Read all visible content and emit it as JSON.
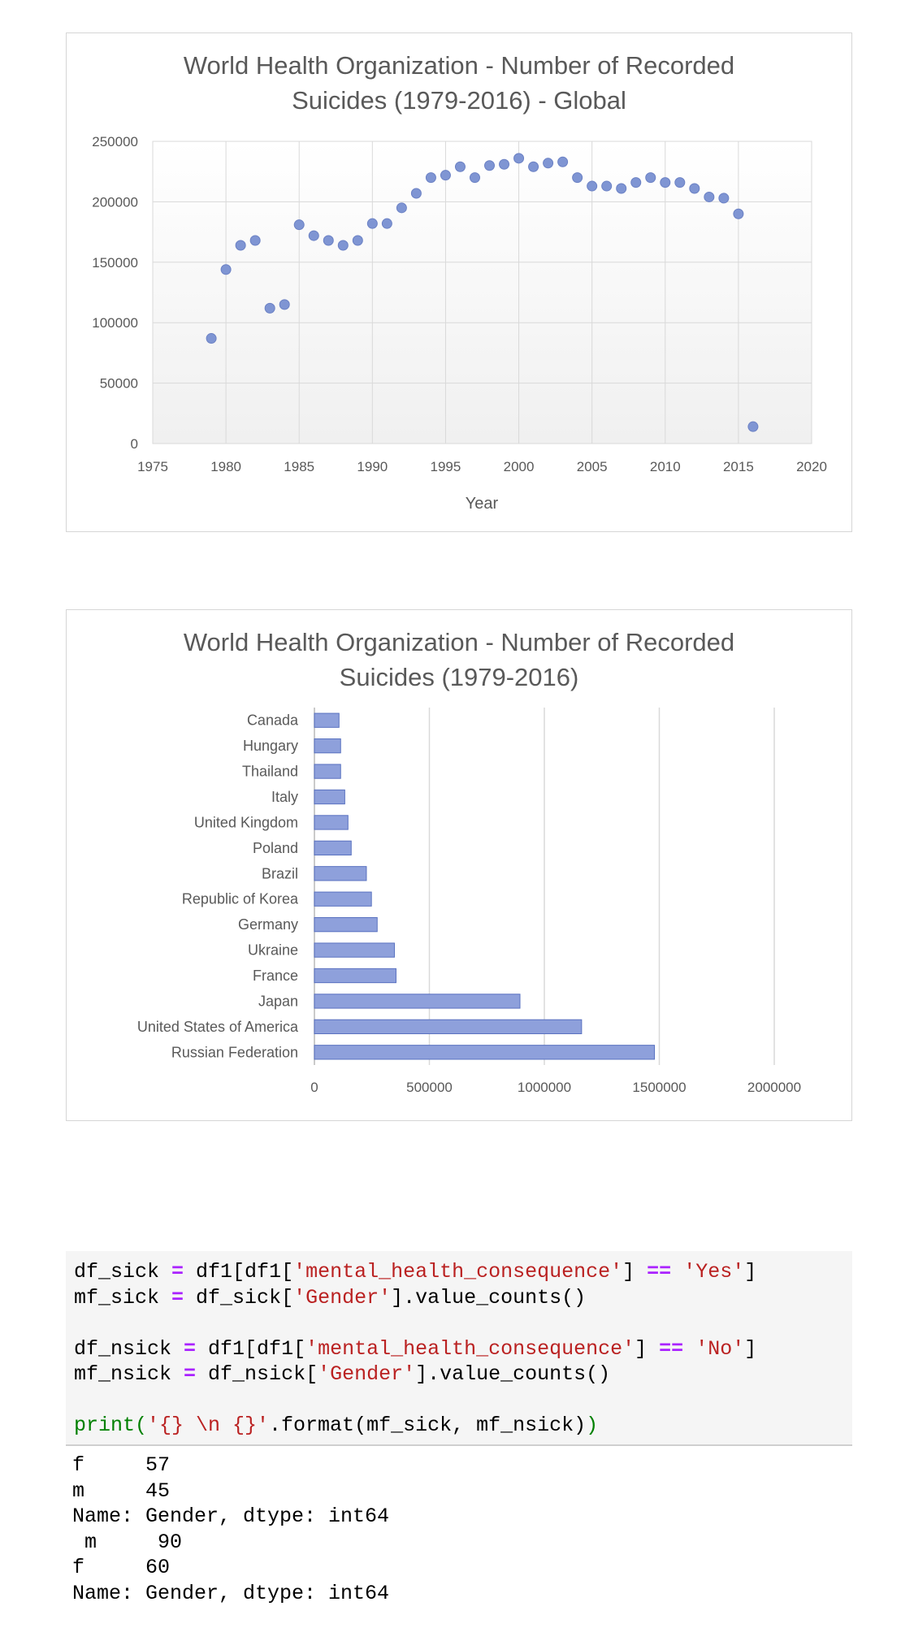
{
  "chart_data": [
    {
      "type": "scatter",
      "title_line1": "World Health Organization - Number of Recorded",
      "title_line2": "Suicides (1979-2016) - Global",
      "xlabel": "Year",
      "ylabel": "",
      "xlim": [
        1975,
        2020
      ],
      "ylim": [
        0,
        250000
      ],
      "xticks": [
        "1975",
        "1980",
        "1985",
        "1990",
        "1995",
        "2000",
        "2005",
        "2010",
        "2015",
        "2020"
      ],
      "yticks": [
        "0",
        "50000",
        "100000",
        "150000",
        "200000",
        "250000"
      ],
      "grid": true,
      "marker_color": "#7f95d3",
      "x": [
        1979,
        1980,
        1981,
        1982,
        1983,
        1984,
        1985,
        1986,
        1987,
        1988,
        1989,
        1990,
        1991,
        1992,
        1993,
        1994,
        1995,
        1996,
        1997,
        1998,
        1999,
        2000,
        2001,
        2002,
        2003,
        2004,
        2005,
        2006,
        2007,
        2008,
        2009,
        2010,
        2011,
        2012,
        2013,
        2014,
        2015,
        2016
      ],
      "y": [
        87000,
        144000,
        164000,
        168000,
        112000,
        115000,
        181000,
        172000,
        168000,
        164000,
        168000,
        182000,
        182000,
        195000,
        207000,
        220000,
        222000,
        229000,
        220000,
        230000,
        231000,
        236000,
        229000,
        232000,
        233000,
        220000,
        213000,
        213000,
        211000,
        216000,
        220000,
        216000,
        216000,
        211000,
        204000,
        203000,
        190000,
        14000
      ]
    },
    {
      "type": "bar",
      "orientation": "horizontal",
      "title_line1": "World Health Organization - Number of Recorded",
      "title_line2": "Suicides (1979-2016)",
      "xlim": [
        0,
        2000000
      ],
      "xticks": [
        "0",
        "500000",
        "1000000",
        "1500000",
        "2000000"
      ],
      "grid": true,
      "bar_color": "#8ea0db",
      "categories": [
        "Canada",
        "Hungary",
        "Thailand",
        "Italy",
        "United Kingdom",
        "Poland",
        "Brazil",
        "Republic of Korea",
        "Germany",
        "Ukraine",
        "France",
        "Japan",
        "United States of America",
        "Russian Federation"
      ],
      "values": [
        107000,
        114000,
        114000,
        132000,
        146000,
        160000,
        226000,
        248000,
        273000,
        348000,
        355000,
        894000,
        1162000,
        1479000
      ]
    }
  ],
  "code_cell": {
    "line1": {
      "a": "df_sick ",
      "b": "=",
      "c": " df1[df1[",
      "d": "'mental_health_consequence'",
      "e": "] ",
      "f": "==",
      "g": " ",
      "h": "'Yes'",
      "i": "]"
    },
    "line2": {
      "a": "mf_sick ",
      "b": "=",
      "c": " df_sick[",
      "d": "'Gender'",
      "e": "].value_counts()"
    },
    "line3": {
      "a": "df_nsick ",
      "b": "=",
      "c": " df1[df1[",
      "d": "'mental_health_consequence'",
      "e": "] ",
      "f": "==",
      "g": " ",
      "h": "'No'",
      "i": "]"
    },
    "line4": {
      "a": "mf_nsick ",
      "b": "=",
      "c": " df_nsick[",
      "d": "'Gender'",
      "e": "].value_counts()"
    },
    "line5": {
      "a": "print(",
      "b": "'{} \\n {}'",
      "c": ".format(mf_sick, mf_nsick)",
      "d": ")"
    }
  },
  "output_lines": [
    "f     57",
    "m     45",
    "Name: Gender, dtype: int64",
    " m     90",
    "f     60",
    "Name: Gender, dtype: int64"
  ]
}
